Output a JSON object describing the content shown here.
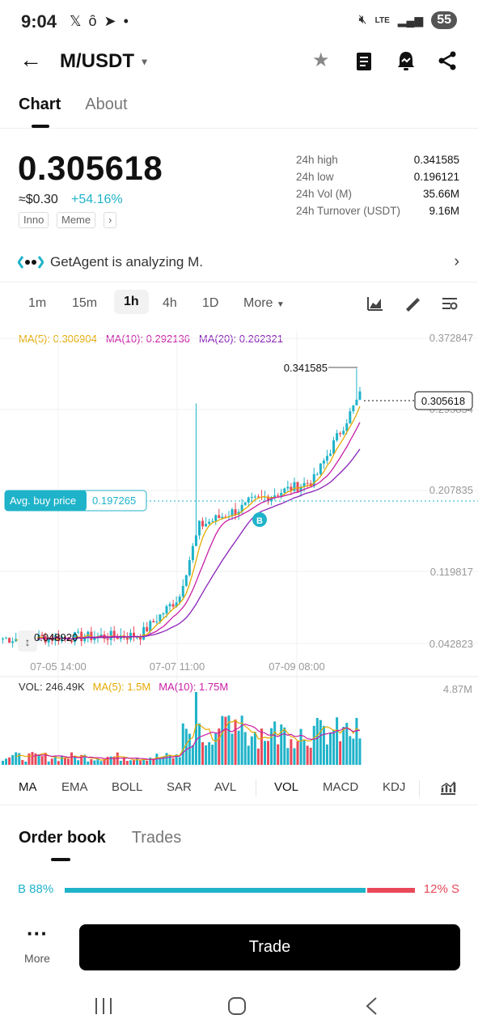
{
  "status_bar": {
    "time": "9:04",
    "network": "LTE",
    "battery": "55"
  },
  "header": {
    "pair": "M/USDT"
  },
  "tabs": [
    {
      "label": "Chart"
    },
    {
      "label": "About"
    }
  ],
  "ticker": {
    "price": "0.305618",
    "approx": "≈$0.30",
    "change": "+54.16%",
    "tags": [
      "Inno",
      "Meme",
      "›"
    ],
    "stats": [
      {
        "label": "24h high",
        "value": "0.341585"
      },
      {
        "label": "24h low",
        "value": "0.196121"
      },
      {
        "label": "24h Vol (M)",
        "value": "35.66M"
      },
      {
        "label": "24h Turnover (USDT)",
        "value": "9.16M"
      }
    ]
  },
  "agent": {
    "text": "GetAgent is analyzing M."
  },
  "timeframes": [
    "1m",
    "15m",
    "1h",
    "4h",
    "1D",
    "More"
  ],
  "ma_legend": {
    "ma5": "MA(5): 0.306904",
    "ma10": "MA(10): 0.292136",
    "ma20": "MA(20): 0.262321"
  },
  "chart_data": {
    "type": "candlestick",
    "y_ticks": [
      "0.372847",
      "0.295834",
      "0.207835",
      "0.119817",
      "0.042823"
    ],
    "x_ticks": [
      "07-05 14:00",
      "07-07 11:00",
      "07-09 08:00"
    ],
    "high_label": "0.341585",
    "low_label": "0.048920",
    "current_price": "0.305618",
    "avg_buy_label": "Avg. buy price",
    "avg_buy_value": "0.197265",
    "buy_marker": "B",
    "up_color": "#1fb3c9",
    "down_color": "#e8495a"
  },
  "volume": {
    "vol": "VOL: 246.49K",
    "ma5": "MA(5): 1.5M",
    "ma10": "MA(10): 1.75M",
    "max": "4.87M"
  },
  "indicators": [
    "MA",
    "EMA",
    "BOLL",
    "SAR",
    "AVL",
    "VOL",
    "MACD",
    "KDJ"
  ],
  "orderbook": {
    "tabs": [
      "Order book",
      "Trades"
    ],
    "buy_label": "B 88%",
    "sell_label": "12% S",
    "buy_ratio": 0.88
  },
  "bottom": {
    "more_label": "More",
    "trade_label": "Trade"
  }
}
